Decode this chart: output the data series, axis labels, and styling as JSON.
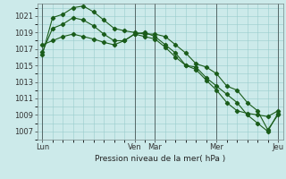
{
  "title": "Pression niveau de la mer( hPa )",
  "bg_color": "#cceaea",
  "grid_color": "#99cccc",
  "line_color": "#1a5c1a",
  "x_tick_labels": [
    "Lun",
    "Ven",
    "Mar",
    "Mer",
    "Jeu"
  ],
  "x_tick_positions": [
    0,
    9,
    11,
    17,
    23
  ],
  "ylim": [
    1006.0,
    1022.5
  ],
  "yticks": [
    1007,
    1009,
    1011,
    1013,
    1015,
    1017,
    1019,
    1021
  ],
  "xlim": [
    -0.5,
    23.5
  ],
  "series1_x": [
    0,
    1,
    2,
    3,
    4,
    5,
    6,
    7,
    8,
    9,
    10,
    11,
    12,
    13,
    14,
    15,
    16,
    17,
    18,
    19,
    20,
    21,
    22,
    23
  ],
  "series1_y": [
    1016.3,
    1020.8,
    1021.2,
    1022.0,
    1022.2,
    1021.5,
    1020.5,
    1019.5,
    1019.2,
    1019.0,
    1018.8,
    1018.8,
    1018.5,
    1017.5,
    1016.5,
    1015.2,
    1014.8,
    1014.0,
    1012.5,
    1012.0,
    1010.5,
    1009.5,
    1007.2,
    1009.0
  ],
  "series2_x": [
    0,
    1,
    2,
    3,
    4,
    5,
    6,
    7,
    8,
    9,
    10,
    11,
    12,
    13,
    14,
    15,
    16,
    17,
    18,
    19,
    20,
    21,
    22,
    23
  ],
  "series2_y": [
    1016.6,
    1019.5,
    1020.0,
    1020.8,
    1020.5,
    1019.8,
    1018.8,
    1018.0,
    1018.0,
    1018.8,
    1018.5,
    1018.2,
    1017.2,
    1016.0,
    1015.0,
    1014.8,
    1013.5,
    1012.5,
    1011.5,
    1010.5,
    1009.0,
    1008.0,
    1007.0,
    1009.2
  ],
  "series3_x": [
    0,
    1,
    2,
    3,
    4,
    5,
    6,
    7,
    8,
    9,
    10,
    11,
    12,
    13,
    14,
    15,
    16,
    17,
    18,
    19,
    20,
    21,
    22,
    23
  ],
  "series3_y": [
    1017.5,
    1018.0,
    1018.5,
    1018.8,
    1018.5,
    1018.2,
    1017.8,
    1017.5,
    1018.0,
    1018.8,
    1019.0,
    1018.5,
    1017.5,
    1016.5,
    1015.0,
    1014.5,
    1013.2,
    1012.0,
    1010.5,
    1009.5,
    1009.2,
    1009.0,
    1008.8,
    1009.5
  ]
}
